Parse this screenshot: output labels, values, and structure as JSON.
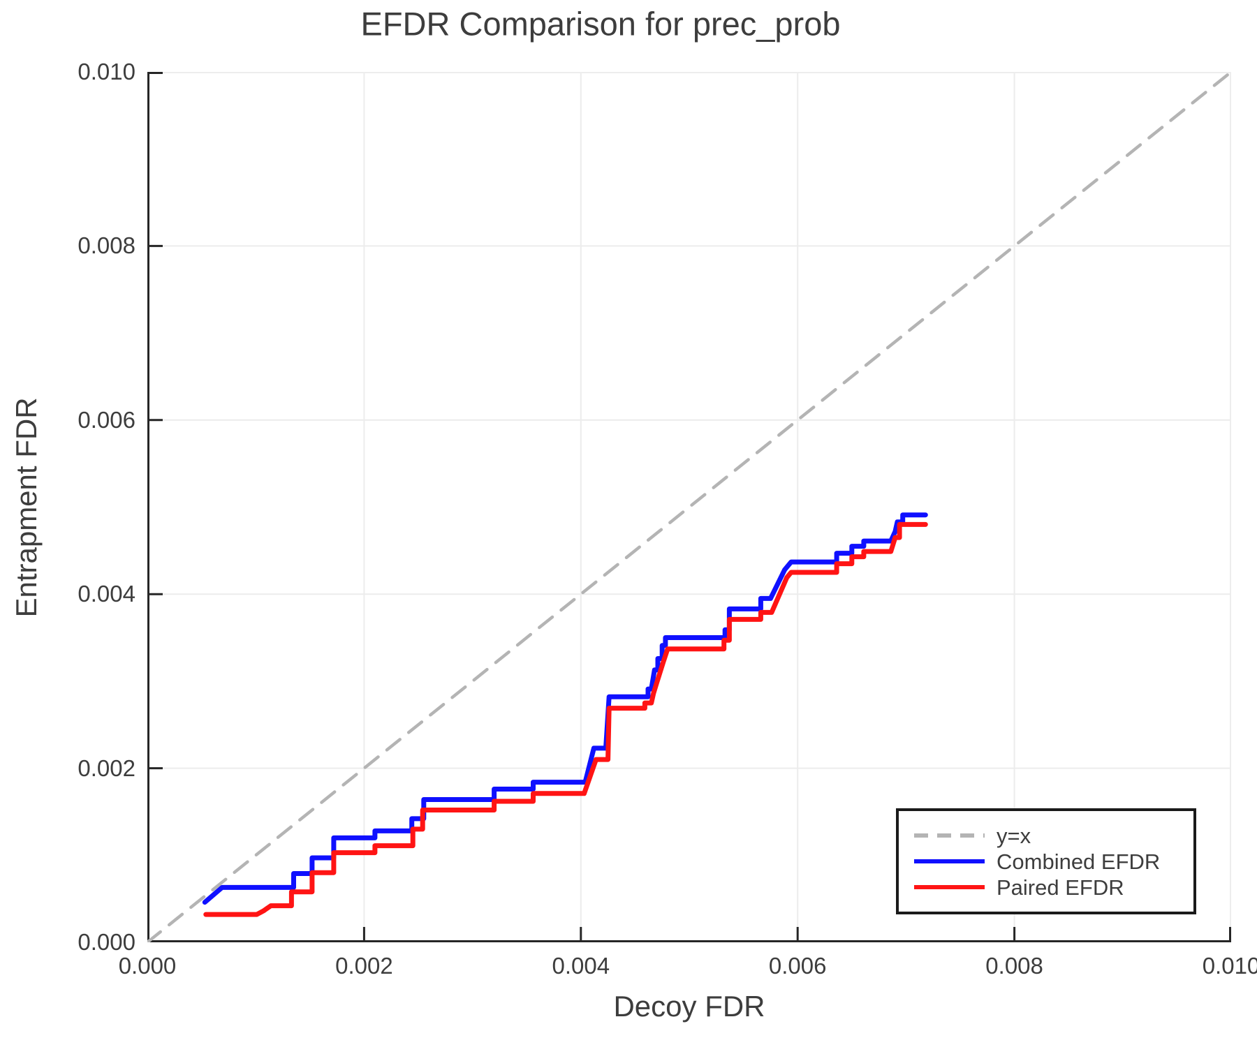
{
  "chart_data": {
    "type": "line",
    "title": "EFDR Comparison for prec_prob",
    "xlabel": "Decoy FDR",
    "ylabel": "Entrapment FDR",
    "xlim": [
      0.0,
      0.01
    ],
    "ylim": [
      0.0,
      0.01
    ],
    "xticks": [
      "0.000",
      "0.002",
      "0.004",
      "0.006",
      "0.008",
      "0.010"
    ],
    "yticks": [
      "0.000",
      "0.002",
      "0.004",
      "0.006",
      "0.008",
      "0.010"
    ],
    "grid": true,
    "legend_position": "lower right",
    "colors": {
      "grid": "#ececec",
      "axis": "#262626",
      "boundary": "#ededed",
      "text": "#3d3d3d",
      "diagonal": "#b4b4b4",
      "combined": "#0f10ff",
      "paired": "#ff1414"
    },
    "series": [
      {
        "id": "identity",
        "name": "y=x",
        "style": "dashed",
        "color": "#b4b4b4",
        "width": 4.5,
        "points": [
          [
            0.0,
            0.0
          ],
          [
            0.01,
            0.01
          ]
        ]
      },
      {
        "id": "combined-efdr",
        "name": "Combined EFDR",
        "style": "solid",
        "color": "#0f10ff",
        "width": 7,
        "points": [
          [
            0.00053,
            0.00046
          ],
          [
            0.00069,
            0.00063
          ],
          [
            0.00135,
            0.00063
          ],
          [
            0.00135,
            0.00079
          ],
          [
            0.00152,
            0.00079
          ],
          [
            0.00152,
            0.00097
          ],
          [
            0.00172,
            0.00097
          ],
          [
            0.00172,
            0.0012
          ],
          [
            0.0021,
            0.0012
          ],
          [
            0.0021,
            0.00128
          ],
          [
            0.00244,
            0.00128
          ],
          [
            0.00244,
            0.00142
          ],
          [
            0.00255,
            0.00142
          ],
          [
            0.00255,
            0.00164
          ],
          [
            0.0032,
            0.00164
          ],
          [
            0.0032,
            0.00176
          ],
          [
            0.00356,
            0.00176
          ],
          [
            0.00356,
            0.00184
          ],
          [
            0.00404,
            0.00184
          ],
          [
            0.00412,
            0.00223
          ],
          [
            0.00423,
            0.00223
          ],
          [
            0.00426,
            0.00282
          ],
          [
            0.00462,
            0.00282
          ],
          [
            0.00462,
            0.00291
          ],
          [
            0.00465,
            0.00291
          ],
          [
            0.00468,
            0.00313
          ],
          [
            0.00471,
            0.00313
          ],
          [
            0.00471,
            0.00326
          ],
          [
            0.00475,
            0.00326
          ],
          [
            0.00475,
            0.00341
          ],
          [
            0.00478,
            0.00341
          ],
          [
            0.00478,
            0.0035
          ],
          [
            0.00533,
            0.0035
          ],
          [
            0.00533,
            0.00359
          ],
          [
            0.00537,
            0.00359
          ],
          [
            0.00537,
            0.00383
          ],
          [
            0.00566,
            0.00383
          ],
          [
            0.00566,
            0.00395
          ],
          [
            0.00575,
            0.00395
          ],
          [
            0.00588,
            0.00428
          ],
          [
            0.00594,
            0.00437
          ],
          [
            0.00636,
            0.00437
          ],
          [
            0.00636,
            0.00447
          ],
          [
            0.0065,
            0.00447
          ],
          [
            0.0065,
            0.00455
          ],
          [
            0.00661,
            0.00455
          ],
          [
            0.00661,
            0.00461
          ],
          [
            0.00686,
            0.00461
          ],
          [
            0.0069,
            0.00472
          ],
          [
            0.00692,
            0.00483
          ],
          [
            0.00697,
            0.00483
          ],
          [
            0.00697,
            0.00491
          ],
          [
            0.00718,
            0.00491
          ]
        ]
      },
      {
        "id": "paired-efdr",
        "name": "Paired EFDR",
        "style": "solid",
        "color": "#ff1414",
        "width": 7,
        "points": [
          [
            0.00054,
            0.00032
          ],
          [
            0.00101,
            0.00032
          ],
          [
            0.00107,
            0.00036
          ],
          [
            0.00114,
            0.00042
          ],
          [
            0.00133,
            0.00042
          ],
          [
            0.00133,
            0.00058
          ],
          [
            0.00152,
            0.00058
          ],
          [
            0.00152,
            0.0008
          ],
          [
            0.00172,
            0.0008
          ],
          [
            0.00172,
            0.00103
          ],
          [
            0.0021,
            0.00103
          ],
          [
            0.0021,
            0.00111
          ],
          [
            0.00245,
            0.00111
          ],
          [
            0.00245,
            0.0013
          ],
          [
            0.00254,
            0.0013
          ],
          [
            0.00254,
            0.00152
          ],
          [
            0.0032,
            0.00152
          ],
          [
            0.0032,
            0.00162
          ],
          [
            0.00356,
            0.00162
          ],
          [
            0.00356,
            0.00171
          ],
          [
            0.00403,
            0.00171
          ],
          [
            0.00414,
            0.0021
          ],
          [
            0.00425,
            0.0021
          ],
          [
            0.00426,
            0.00269
          ],
          [
            0.00459,
            0.00269
          ],
          [
            0.00459,
            0.00275
          ],
          [
            0.00465,
            0.00275
          ],
          [
            0.00467,
            0.00286
          ],
          [
            0.0047,
            0.00298
          ],
          [
            0.00473,
            0.0031
          ],
          [
            0.00476,
            0.00322
          ],
          [
            0.0048,
            0.00337
          ],
          [
            0.00532,
            0.00337
          ],
          [
            0.00532,
            0.00347
          ],
          [
            0.00537,
            0.00347
          ],
          [
            0.00537,
            0.00371
          ],
          [
            0.00566,
            0.00371
          ],
          [
            0.00566,
            0.00379
          ],
          [
            0.00576,
            0.00379
          ],
          [
            0.0059,
            0.00419
          ],
          [
            0.00594,
            0.00425
          ],
          [
            0.00636,
            0.00425
          ],
          [
            0.00636,
            0.00435
          ],
          [
            0.0065,
            0.00435
          ],
          [
            0.0065,
            0.00443
          ],
          [
            0.00661,
            0.00443
          ],
          [
            0.00661,
            0.00449
          ],
          [
            0.00686,
            0.00449
          ],
          [
            0.0069,
            0.00465
          ],
          [
            0.00694,
            0.00465
          ],
          [
            0.00694,
            0.0048
          ],
          [
            0.00697,
            0.0048
          ],
          [
            0.00718,
            0.0048
          ]
        ]
      }
    ]
  }
}
